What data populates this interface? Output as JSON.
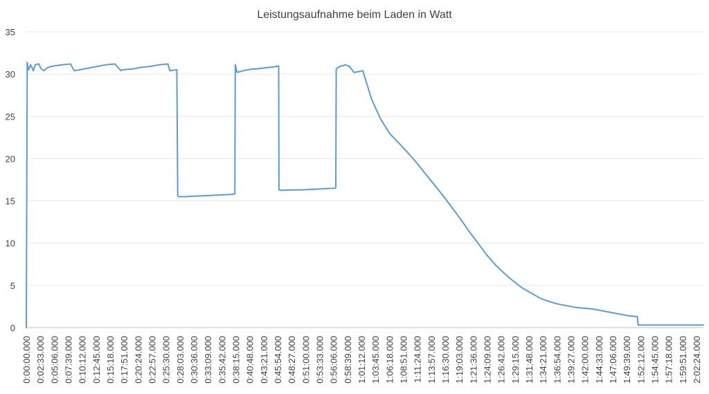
{
  "chart_data": {
    "type": "line",
    "title": "Leistungsaufnahme beim Laden in Watt",
    "xlabel": "",
    "ylabel": "",
    "ylim": [
      0,
      35
    ],
    "yticks": [
      0,
      5,
      10,
      15,
      20,
      25,
      30,
      35
    ],
    "xlim_seconds": [
      0,
      7647
    ],
    "grid": "horizontal",
    "legend": "none",
    "line_color": "#5b9bd5",
    "x_tick_labels": [
      "0:00:00.000",
      "0:02:33.000",
      "0:05:06.000",
      "0:07:39.000",
      "0:10:12.000",
      "0:12:45.000",
      "0:15:18.000",
      "0:17:51.000",
      "0:20:24.000",
      "0:22:57.000",
      "0:25:30.000",
      "0:28:03.000",
      "0:30:36.000",
      "0:33:09.000",
      "0:35:42.000",
      "0:38:15.000",
      "0:40:48.000",
      "0:43:21.000",
      "0:45:54.000",
      "0:48:27.000",
      "0:51:00.000",
      "0:53:33.000",
      "0:56:06.000",
      "0:58:39.000",
      "1:01:12.000",
      "1:03:45.000",
      "1:06:18.000",
      "1:08:51.000",
      "1:11:24.000",
      "1:13:57.000",
      "1:16:30.000",
      "1:19:03.000",
      "1:21:36.000",
      "1:24:09.000",
      "1:26:42.000",
      "1:29:15.000",
      "1:31:48.000",
      "1:34:21.000",
      "1:36:54.000",
      "1:39:27.000",
      "1:42:00.000",
      "1:44:33.000",
      "1:47:06.000",
      "1:49:39.000",
      "1:52:12.000",
      "1:54:45.000",
      "1:57:18.000",
      "1:59:51.000",
      "2:02:24.000"
    ],
    "series": [
      {
        "x_seconds": [
          0,
          10,
          25,
          50,
          80,
          100,
          140,
          170,
          200,
          230,
          280,
          400,
          500,
          540,
          600,
          700,
          800,
          900,
          1000,
          1070,
          1080,
          1200,
          1300,
          1400,
          1500,
          1600,
          1620,
          1700,
          1710,
          1714,
          1720,
          1800,
          1900,
          2000,
          2100,
          2200,
          2300,
          2350,
          2355,
          2360,
          2380,
          2420,
          2450,
          2500,
          2560,
          2600,
          2700,
          2800,
          2850,
          2853,
          2857,
          2870,
          2900,
          3000,
          3100,
          3200,
          3300,
          3400,
          3490,
          3495,
          3500,
          3540,
          3580,
          3600,
          3650,
          3700,
          3760,
          3800,
          3900,
          4000,
          4100,
          4200,
          4300,
          4400,
          4500,
          4600,
          4700,
          4800,
          4900,
          5000,
          5100,
          5200,
          5300,
          5400,
          5500,
          5600,
          5700,
          5800,
          5900,
          6000,
          6100,
          6200,
          6300,
          6400,
          6500,
          6600,
          6700,
          6800,
          6900,
          6910,
          6915,
          7000,
          7100,
          7200,
          7300,
          7400,
          7500,
          7600,
          7647
        ],
        "y": [
          0,
          31.4,
          30.5,
          31.1,
          30.4,
          31.1,
          31.2,
          30.6,
          30.4,
          30.7,
          30.9,
          31.1,
          31.2,
          30.4,
          30.5,
          30.7,
          30.9,
          31.1,
          31.2,
          30.4,
          30.5,
          30.6,
          30.8,
          30.9,
          31.1,
          31.2,
          30.4,
          30.5,
          15.6,
          15.55,
          15.5,
          15.5,
          15.55,
          15.6,
          15.65,
          15.7,
          15.75,
          15.8,
          15.85,
          31.1,
          30.2,
          30.3,
          30.4,
          30.5,
          30.6,
          30.6,
          30.75,
          30.85,
          30.95,
          16.3,
          16.3,
          16.25,
          16.25,
          16.3,
          16.3,
          16.35,
          16.4,
          16.45,
          16.5,
          16.55,
          30.6,
          30.9,
          31.0,
          31.1,
          30.9,
          30.2,
          30.3,
          30.4,
          27.0,
          24.7,
          23.0,
          21.9,
          20.8,
          19.6,
          18.3,
          17.0,
          15.7,
          14.3,
          12.9,
          11.4,
          10.0,
          8.6,
          7.4,
          6.4,
          5.5,
          4.7,
          4.1,
          3.5,
          3.1,
          2.8,
          2.6,
          2.4,
          2.3,
          2.2,
          2.0,
          1.8,
          1.6,
          1.4,
          1.3,
          0.3,
          0.3,
          0.3,
          0.3,
          0.3,
          0.3,
          0.3,
          0.3,
          0.3,
          0.3
        ]
      }
    ]
  }
}
